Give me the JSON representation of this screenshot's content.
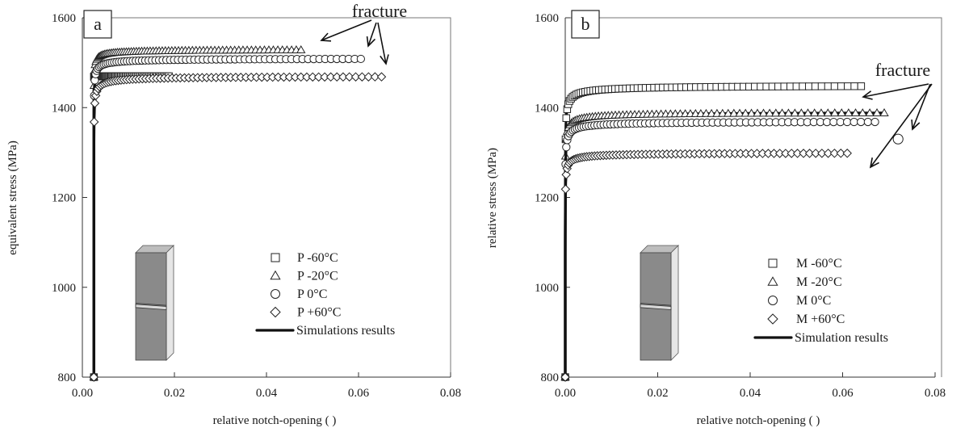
{
  "chart_data": [
    {
      "type": "scatter",
      "panel_label": "a",
      "xlabel": "relative notch-opening ( )",
      "ylabel": "equivalent stress (MPa)",
      "xlim": [
        0,
        0.08
      ],
      "ylim": [
        800,
        1600
      ],
      "xticks": [
        "0.00",
        "0.02",
        "0.04",
        "0.06",
        "0.08"
      ],
      "yticks": [
        "800",
        "1000",
        "1200",
        "1400",
        "1600"
      ],
      "annotation": "fracture",
      "grid": false,
      "legend_position": "lower-right",
      "series": [
        {
          "name": "P -60°C",
          "marker": "square",
          "a": 1470,
          "b": 22000,
          "c": 11500,
          "x0": 0.0025,
          "xmax": 0.0188,
          "sim_xmax": 0.0205
        },
        {
          "name": "P -20°C",
          "marker": "triangle",
          "a": 1530,
          "b": 4500,
          "c": 110,
          "x0": 0.0025,
          "xmax": 0.0475,
          "sim_xmax": 0.047
        },
        {
          "name": "P   0°C",
          "marker": "circle",
          "a": 1510,
          "b": 4000,
          "c": 90,
          "x0": 0.0025,
          "xmax": 0.0605,
          "sim_xmax": 0.06
        },
        {
          "name": "P +60°C",
          "marker": "diamond",
          "a": 1470,
          "b": 4500,
          "c": 63,
          "x0": 0.0025,
          "xmax": 0.065,
          "sim_xmax": 0.065
        }
      ],
      "simulation_legend": "Simulations results"
    },
    {
      "type": "scatter",
      "panel_label": "b",
      "xlabel": "relative notch-opening ( )",
      "ylabel": "relative stress (MPa)",
      "xlim": [
        0,
        0.08
      ],
      "ylim": [
        800,
        1600
      ],
      "xticks": [
        "0.00",
        "0.02",
        "0.04",
        "0.06",
        "0.08"
      ],
      "yticks": [
        "800",
        "1000",
        "1200",
        "1400",
        "1600"
      ],
      "annotation": "fracture",
      "grid": false,
      "legend_position": "lower-right",
      "series": [
        {
          "name": "M -60°C",
          "marker": "square",
          "a": 1450,
          "b": 2300,
          "c": 50,
          "x0": 0.0,
          "xmax": 0.064,
          "sim_xmax": 0.064
        },
        {
          "name": "M -20°C",
          "marker": "triangle",
          "a": 1390,
          "b": 2400,
          "c": 55,
          "x0": 0.0,
          "xmax": 0.069,
          "sim_xmax": 0.069
        },
        {
          "name": "M 0°C",
          "marker": "circle",
          "a": 1370,
          "b": 2400,
          "c": 55,
          "x0": 0.0,
          "xmax": 0.067,
          "sim_xmax": 0.067,
          "fracture_point": [
            0.072,
            1330
          ]
        },
        {
          "name": "M +60°C",
          "marker": "diamond",
          "a": 1300,
          "b": 2600,
          "c": 60,
          "x0": 0.0,
          "xmax": 0.061,
          "sim_xmax": 0.06
        }
      ],
      "simulation_legend": "Simulation results"
    }
  ]
}
